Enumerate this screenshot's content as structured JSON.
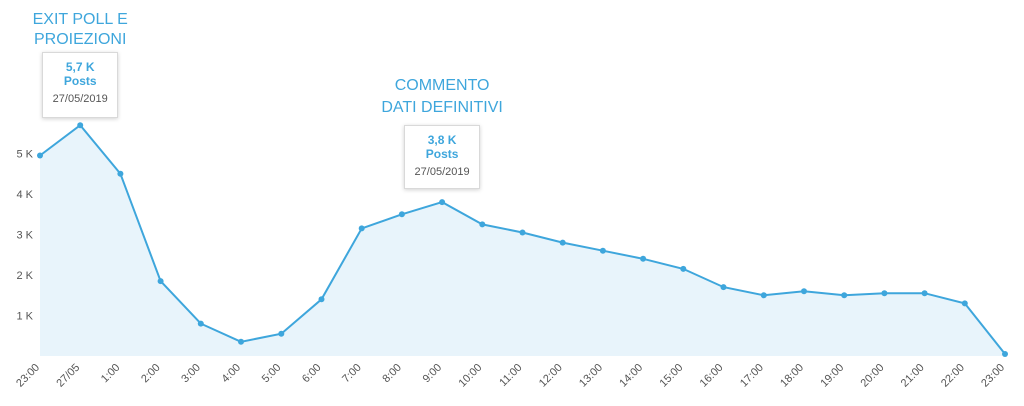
{
  "colors": {
    "line": "#3ea6dc",
    "fill": "#e8f4fb",
    "annotation": "#3ea6dc",
    "tick": "#555555"
  },
  "chart_data": {
    "type": "area",
    "categories": [
      "23:00",
      "27/05",
      "1:00",
      "2:00",
      "3:00",
      "4:00",
      "5:00",
      "6:00",
      "7:00",
      "8:00",
      "9:00",
      "10:00",
      "11:00",
      "12:00",
      "13:00",
      "14:00",
      "15:00",
      "16:00",
      "17:00",
      "18:00",
      "19:00",
      "20:00",
      "21:00",
      "22:00",
      "23:00"
    ],
    "values": [
      4.95,
      5.7,
      4.5,
      1.85,
      0.8,
      0.35,
      0.55,
      1.4,
      3.15,
      3.5,
      3.8,
      3.25,
      3.05,
      2.8,
      2.6,
      2.4,
      2.15,
      1.7,
      1.5,
      1.6,
      1.5,
      1.55,
      1.55,
      1.3,
      0.05
    ],
    "yticks": [
      {
        "value": 1,
        "label": "1 K"
      },
      {
        "value": 2,
        "label": "2 K"
      },
      {
        "value": 3,
        "label": "3 K"
      },
      {
        "value": 4,
        "label": "4 K"
      },
      {
        "value": 5,
        "label": "5 K"
      }
    ],
    "ylim": [
      0,
      5.7
    ],
    "grid": false,
    "annotations": [
      {
        "index": 1,
        "title_lines": [
          "EXIT POLL E",
          "PROIEZIONI"
        ],
        "value": "5,7 K",
        "unit": "Posts",
        "date": "27/05/2019"
      },
      {
        "index": 10,
        "title_lines": [
          "COMMENTO",
          "DATI DEFINITIVI"
        ],
        "value": "3,8 K",
        "unit": "Posts",
        "date": "27/05/2019"
      }
    ]
  }
}
